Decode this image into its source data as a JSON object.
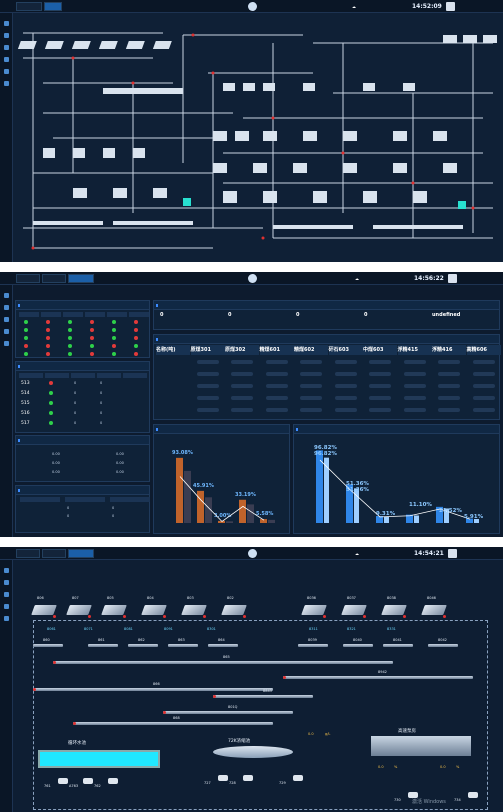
{
  "screen1": {
    "clock": "14:52:09",
    "tabs": [
      "",
      "",
      ""
    ],
    "user": "",
    "labels": [
      "",
      "",
      ""
    ]
  },
  "screen2": {
    "clock": "14:56:22",
    "tabs": [
      "",
      "",
      ""
    ],
    "panel_a_title": "",
    "panel_b_title": "",
    "panel_c_title": "",
    "kpi": {
      "values": [
        "0",
        "0",
        "0",
        "0",
        "undefined"
      ],
      "labels": [
        "",
        "",
        "",
        "",
        ""
      ]
    },
    "table_a": {
      "headers": [
        "",
        "",
        "",
        "",
        "",
        ""
      ],
      "rows": [
        [
          "",
          "",
          "",
          "",
          "",
          ""
        ],
        [
          "",
          "",
          "",
          "",
          "",
          ""
        ],
        [
          "",
          "",
          "",
          "",
          "",
          ""
        ],
        [
          "",
          "",
          "",
          "",
          "",
          ""
        ],
        [
          "",
          "",
          "",
          "",
          "",
          ""
        ]
      ]
    },
    "table_b": {
      "headers": [
        "",
        "",
        "",
        "",
        ""
      ],
      "rows": [
        [
          "513",
          "",
          "0",
          "0",
          ""
        ],
        [
          "514",
          "",
          "0",
          "0",
          ""
        ],
        [
          "515",
          "",
          "0",
          "0",
          ""
        ],
        [
          "516",
          "",
          "0",
          "0",
          ""
        ],
        [
          "517",
          "",
          "0",
          "0",
          ""
        ]
      ]
    },
    "table_c": {
      "headers": [
        "名称(吨)",
        "原煤301",
        "原煤302",
        "精煤601",
        "精煤602",
        "矸石603",
        "中煤603",
        "浮精415",
        "浮精416",
        "高精606"
      ],
      "rows": [
        "",
        "",
        "",
        "",
        ""
      ]
    },
    "panel_d_title": "",
    "panel_d_rows": [
      [
        "",
        "0.00",
        "",
        "0.00"
      ],
      [
        "",
        "0.00",
        "",
        "0.00"
      ],
      [
        "",
        "0.00",
        "",
        "0.00"
      ]
    ],
    "panel_e_title": "",
    "panel_e_headers": [
      "",
      "",
      ""
    ],
    "panel_e_rows": [
      [
        "",
        "0",
        "0"
      ],
      [
        "",
        "0",
        "0"
      ]
    ],
    "chart1": {
      "title": "",
      "legend": [
        "",
        ""
      ],
      "labels": [
        "93.08%",
        "45.91%",
        "3.00%",
        "33.19%",
        "5.58%"
      ],
      "categories": [
        "",
        "",
        "",
        "",
        ""
      ]
    },
    "chart2": {
      "title": "",
      "legend": [
        "",
        "",
        ""
      ],
      "labels": [
        "96.82%",
        "96.82%",
        "51.36%",
        "51.36%",
        "9.31%",
        "11.10%",
        "21.52%",
        "5.91%"
      ]
    }
  },
  "screen3": {
    "clock": "14:54:21",
    "tabs": [
      "",
      "",
      ""
    ],
    "machines_top": [
      "806",
      "807",
      "805",
      "804",
      "803",
      "802",
      "8036",
      "8037",
      "8038",
      "8046"
    ],
    "labels_mid": [
      "8061",
      "8071",
      "8081",
      "8091",
      "8301",
      "8311",
      "8321",
      "8331"
    ],
    "rows2": [
      "860",
      "861",
      "862",
      "863",
      "864",
      "8039",
      "8040",
      "8041",
      "8042"
    ],
    "conveyors": [
      "865",
      "8942",
      "866",
      "8843",
      "801Q",
      "868"
    ],
    "tank_label": "循环水池",
    "thickener_label": "72K浓缩池",
    "thickener_value": "0.0",
    "density_unit": "g/L",
    "right_label": "高速泵房",
    "right_vals": [
      "0.0",
      "%",
      "0.0",
      "%"
    ],
    "pumps": [
      "761",
      "A763",
      "762",
      "727",
      "728",
      "729",
      "730",
      "734"
    ],
    "watermark": "激活 Windows"
  }
}
